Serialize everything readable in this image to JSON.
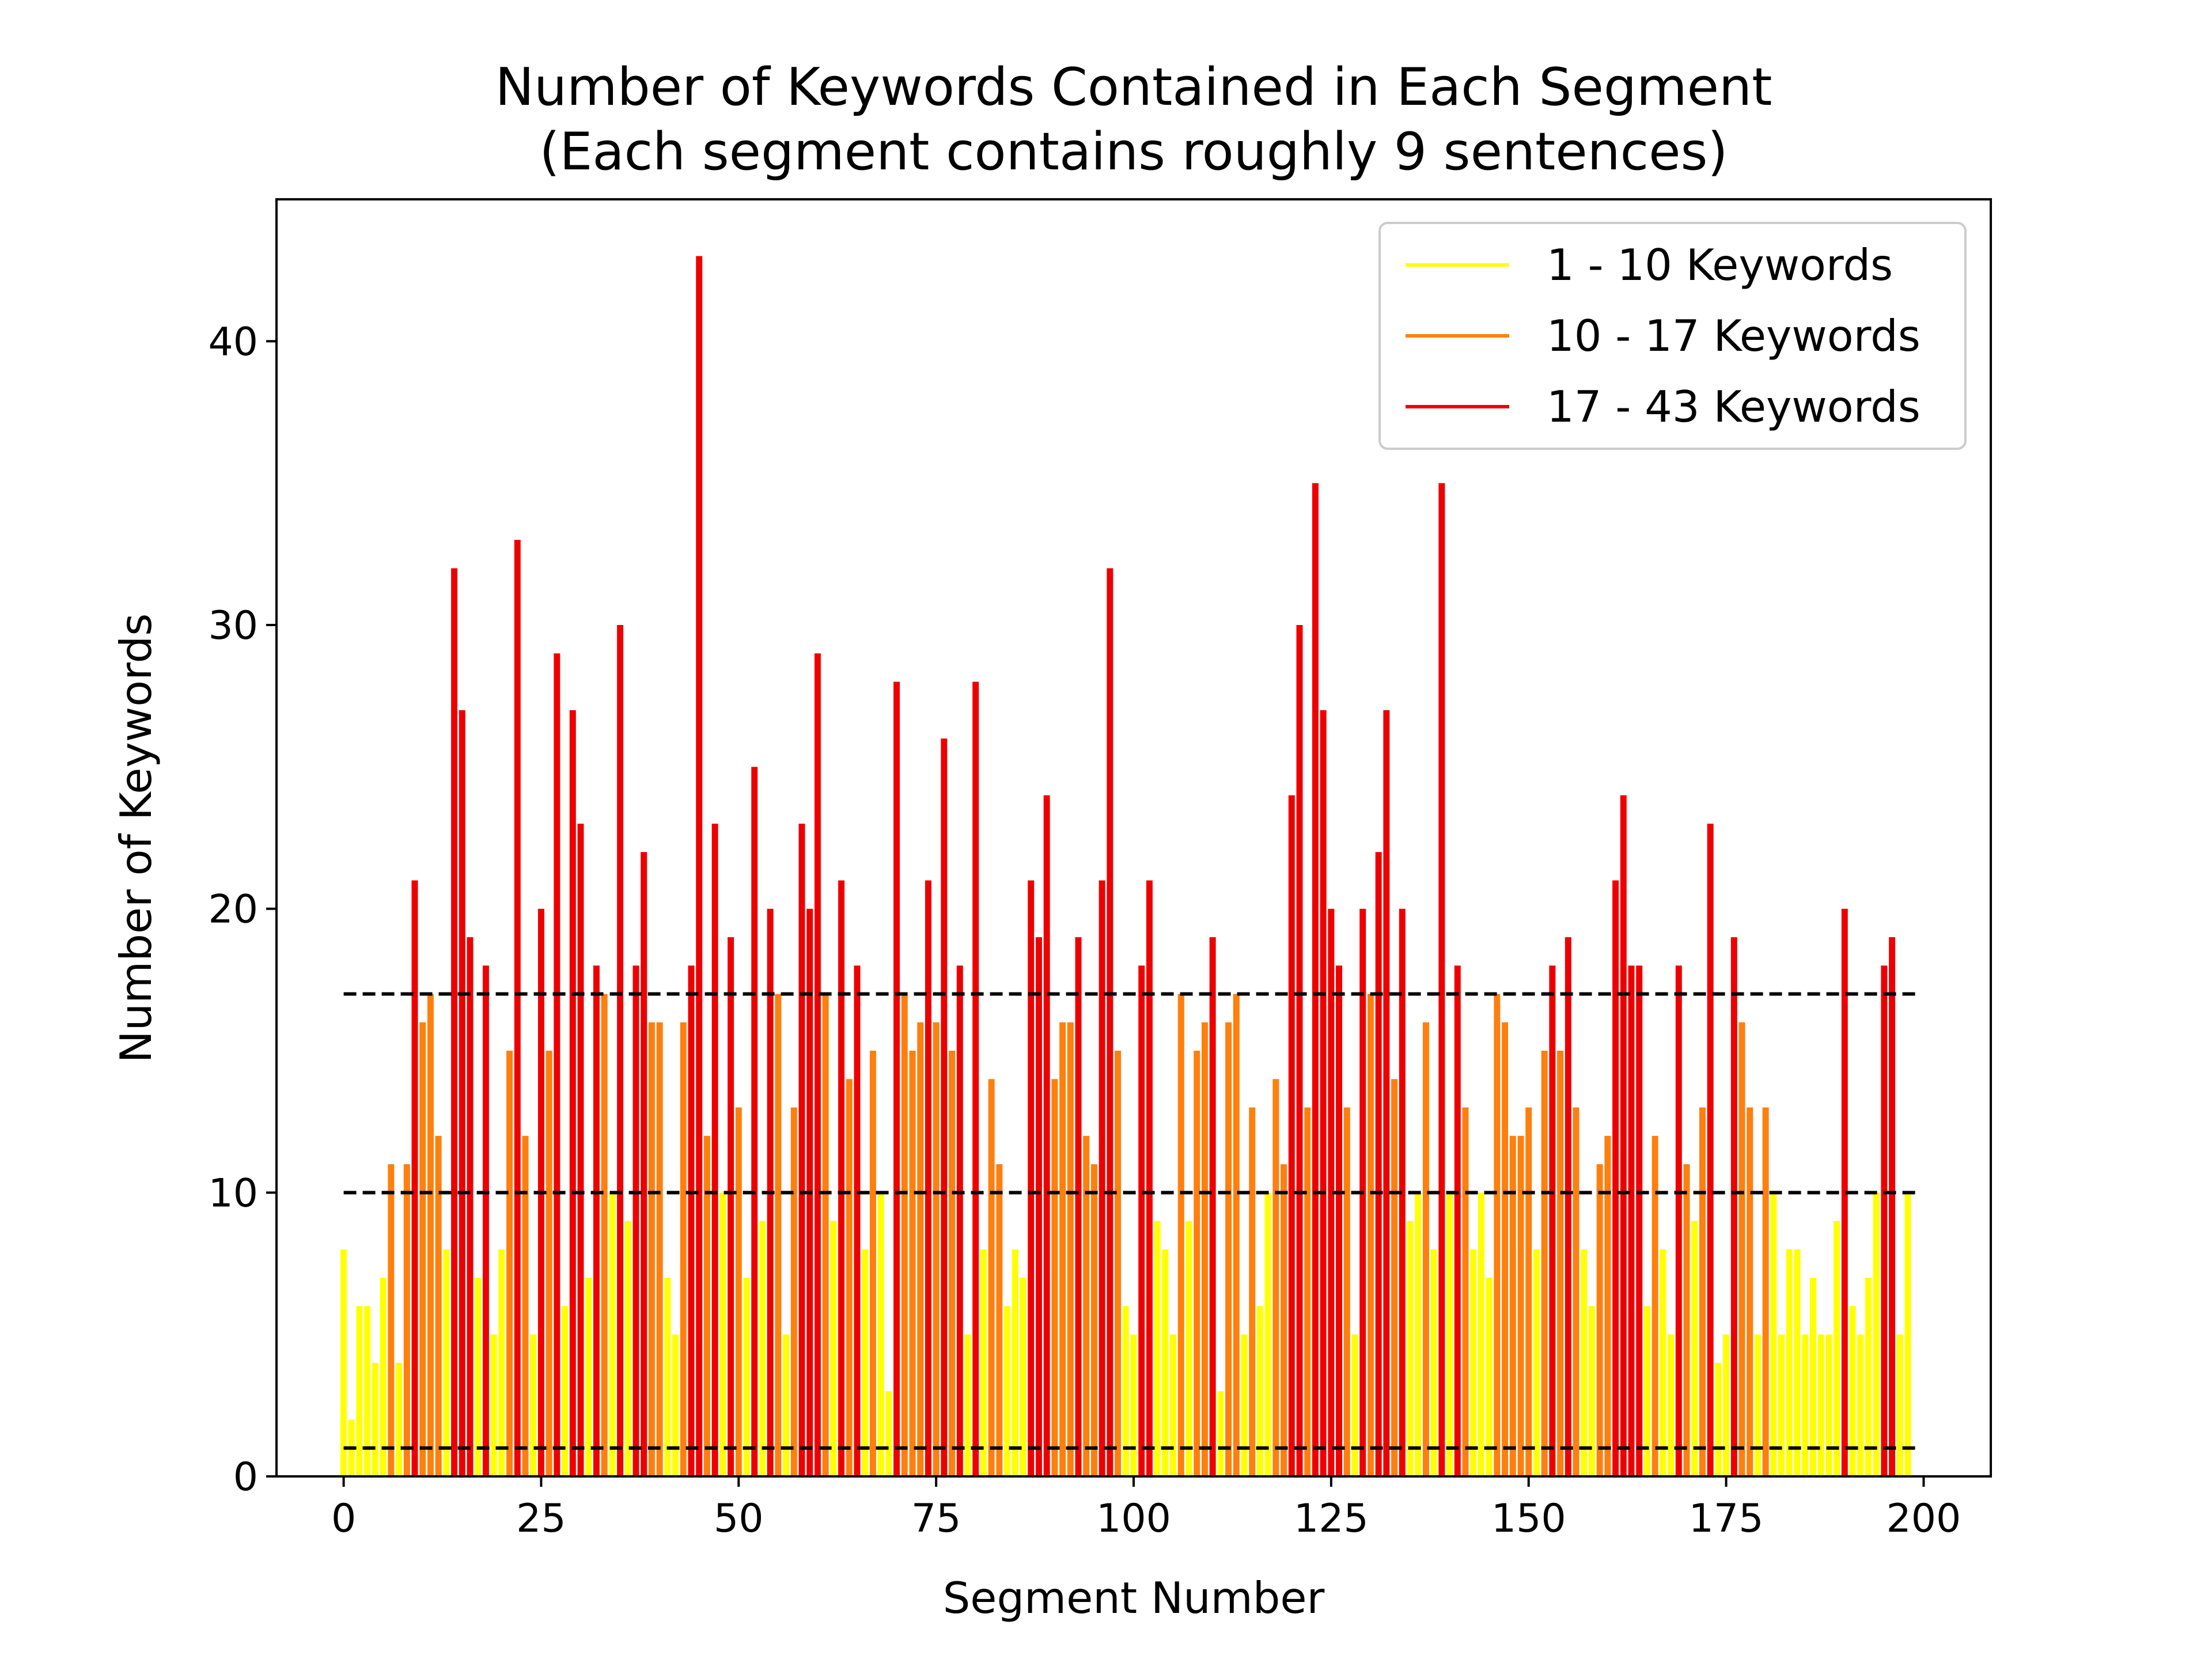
{
  "chart_data": {
    "type": "bar",
    "title_line1": "Number of Keywords Contained in Each Segment",
    "title_line2": "(Each segment contains roughly 9 sentences)",
    "xlabel": "Segment Number",
    "ylabel": "Number of Keywords",
    "xlim": [
      -8.5,
      208.5
    ],
    "ylim": [
      0,
      45
    ],
    "xticks": [
      0,
      25,
      50,
      75,
      100,
      125,
      150,
      175,
      200
    ],
    "yticks": [
      0,
      10,
      20,
      30,
      40
    ],
    "thresholds": [
      1,
      10,
      17
    ],
    "threshold_range": [
      0,
      199
    ],
    "legend_position": "top-right",
    "series": [
      {
        "name": "1 - 10 Keywords",
        "color": "#ffff00"
      },
      {
        "name": "10 - 17 Keywords",
        "color": "#ff7f0e"
      },
      {
        "name": "17 - 43 Keywords",
        "color": "#ee0000"
      }
    ],
    "values": [
      8,
      2,
      6,
      6,
      4,
      7,
      11,
      4,
      11,
      21,
      16,
      17,
      12,
      8,
      32,
      27,
      19,
      7,
      18,
      5,
      8,
      15,
      33,
      12,
      5,
      20,
      15,
      29,
      6,
      27,
      23,
      7,
      18,
      17,
      10,
      30,
      9,
      18,
      22,
      16,
      16,
      7,
      5,
      16,
      18,
      43,
      12,
      23,
      10,
      19,
      13,
      7,
      25,
      9,
      20,
      17,
      5,
      13,
      23,
      20,
      29,
      17,
      9,
      21,
      14,
      18,
      8,
      15,
      10,
      3,
      28,
      17,
      15,
      16,
      21,
      16,
      26,
      15,
      18,
      5,
      28,
      8,
      14,
      11,
      6,
      8,
      7,
      21,
      19,
      24,
      14,
      16,
      16,
      19,
      12,
      11,
      21,
      32,
      15,
      6,
      5,
      18,
      21,
      9,
      8,
      5,
      17,
      9,
      15,
      16,
      19,
      3,
      16,
      17,
      5,
      13,
      6,
      10,
      14,
      11,
      24,
      30,
      13,
      35,
      27,
      20,
      18,
      13,
      5,
      20,
      17,
      22,
      27,
      14,
      20,
      9,
      10,
      16,
      8,
      35,
      10,
      18,
      13,
      8,
      10,
      7,
      17,
      16,
      12,
      12,
      13,
      8,
      15,
      18,
      15,
      19,
      13,
      8,
      6,
      11,
      12,
      21,
      24,
      18,
      18,
      6,
      12,
      8,
      5,
      18,
      11,
      9,
      13,
      23,
      4,
      5,
      19,
      16,
      13,
      5,
      13,
      10,
      5,
      8,
      8,
      5,
      7,
      5,
      5,
      9,
      20,
      6,
      5,
      7,
      10,
      18,
      19,
      5,
      10
    ]
  }
}
